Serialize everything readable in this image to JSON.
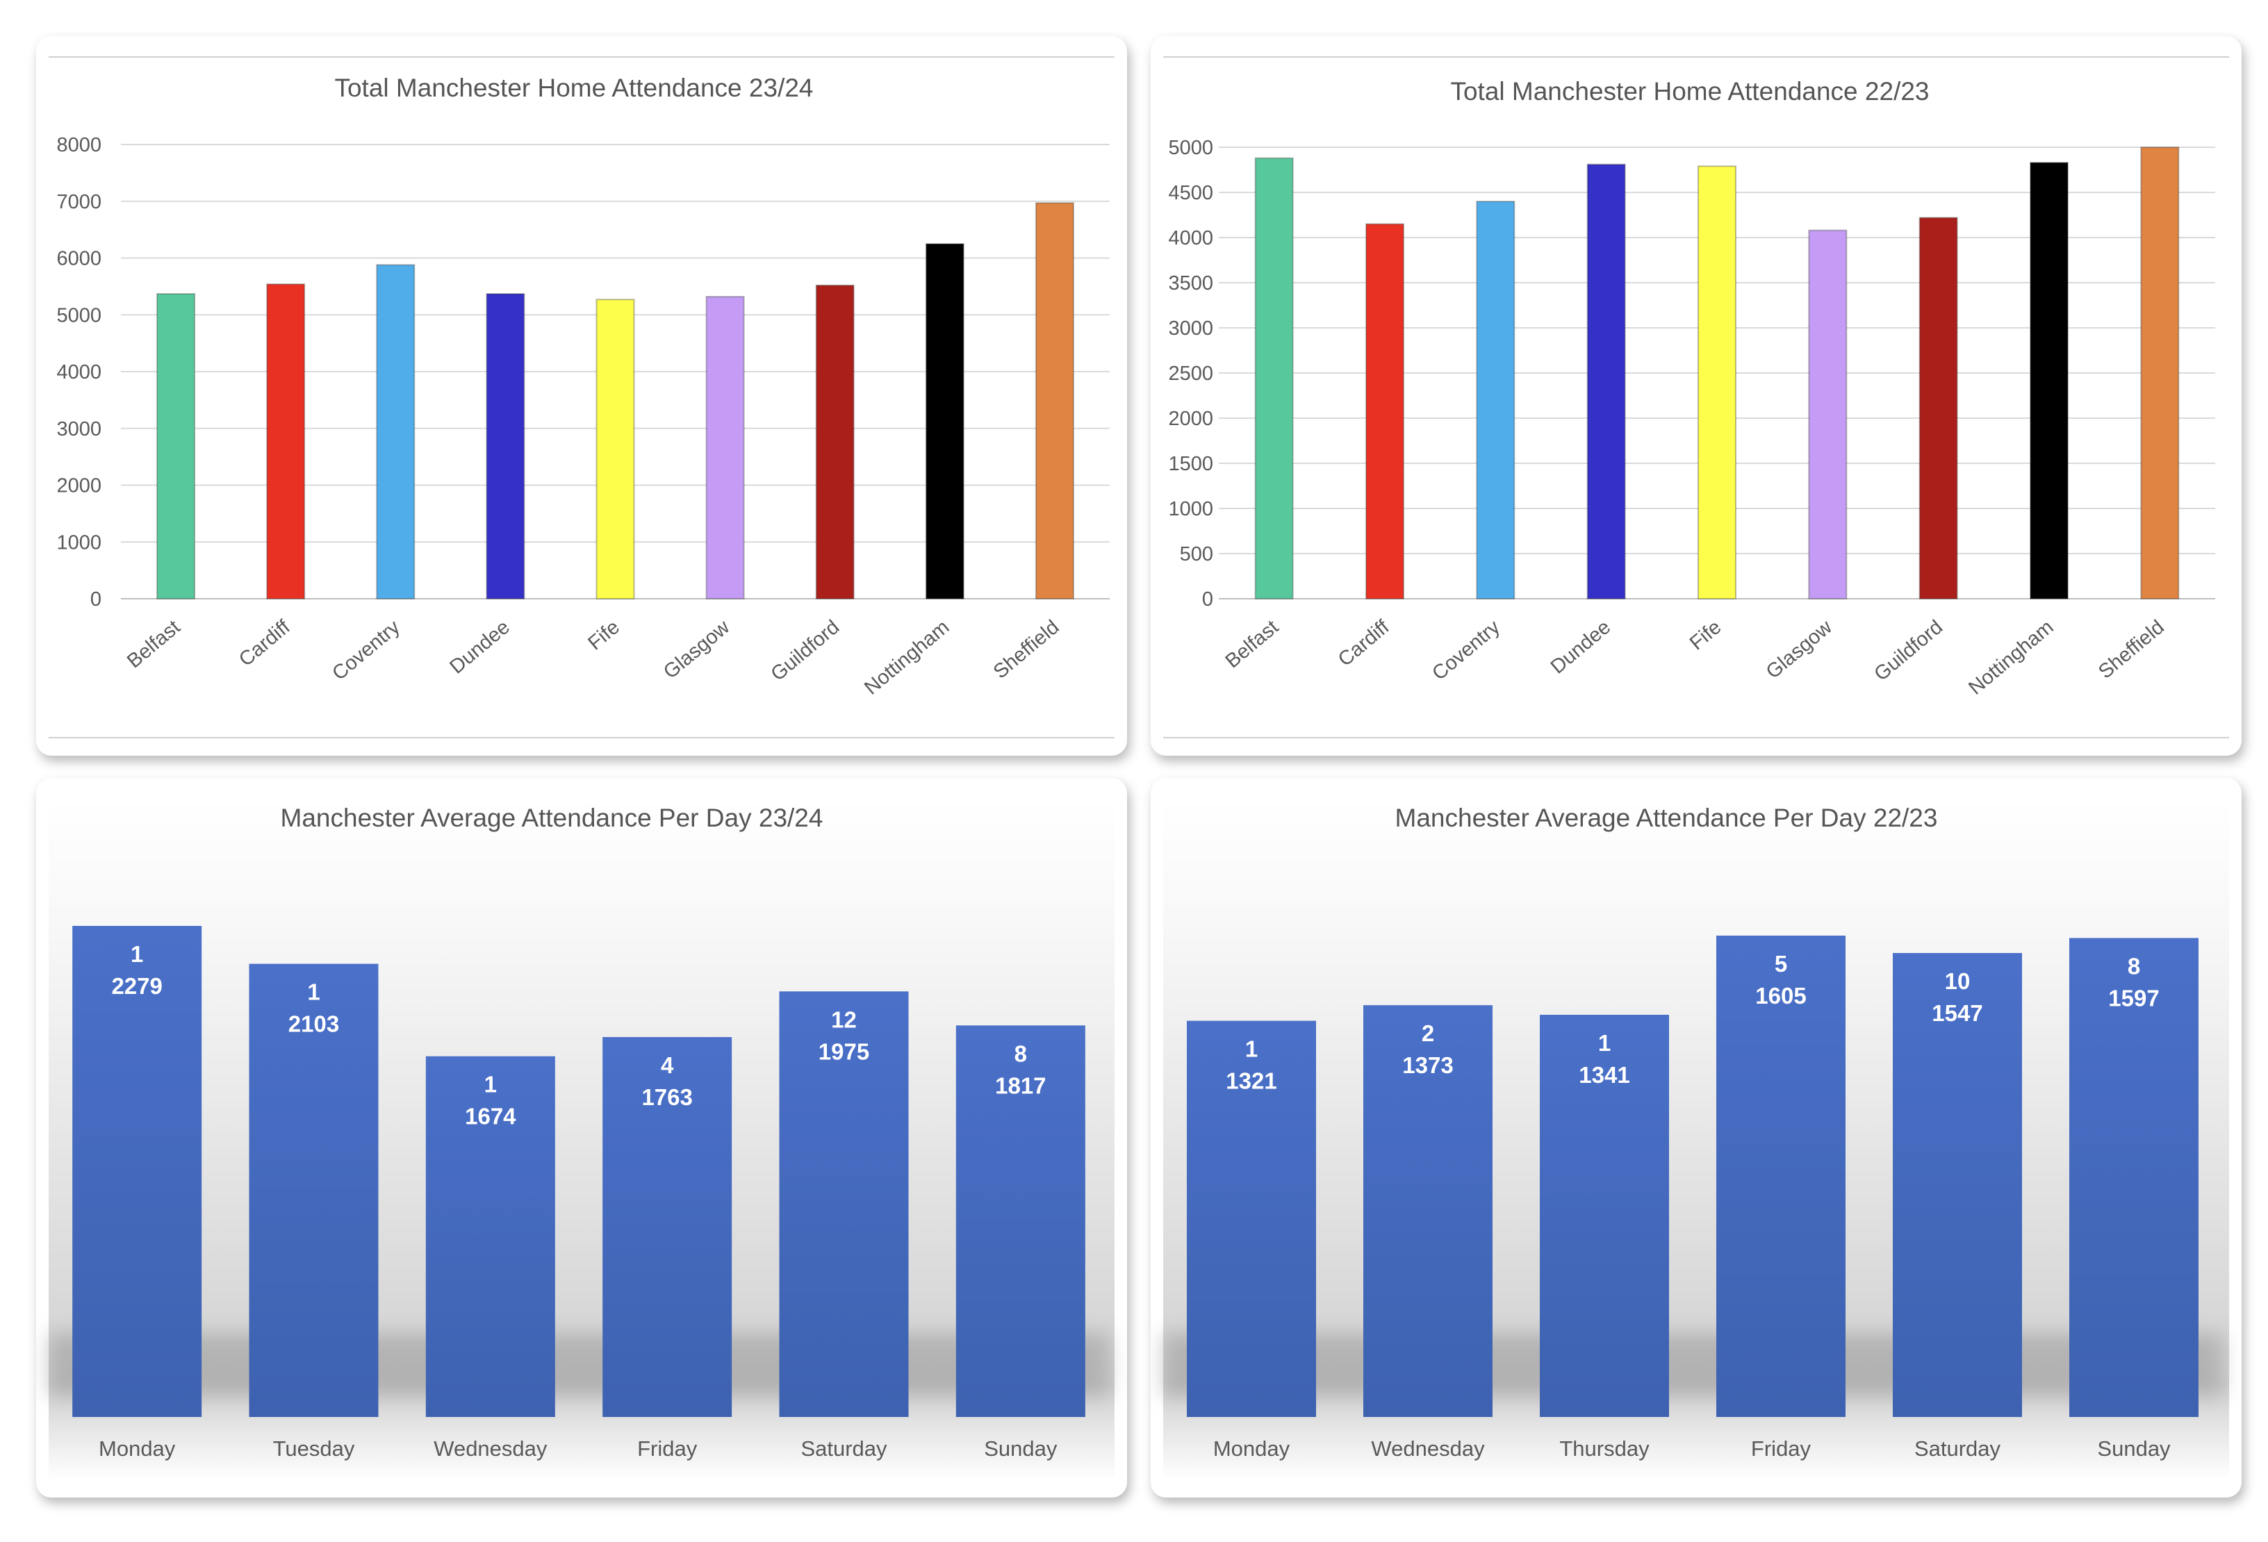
{
  "chart_data": [
    {
      "type": "bar",
      "title": "Total Manchester Home Attendance 23/24",
      "categories": [
        "Belfast",
        "Cardiff",
        "Coventry",
        "Dundee",
        "Fife",
        "Glasgow",
        "Guildford",
        "Nottingham",
        "Sheffield"
      ],
      "values": [
        5370,
        5540,
        5880,
        5370,
        5270,
        5320,
        5520,
        6250,
        6970
      ],
      "colors": [
        "#57c89b",
        "#e93123",
        "#50adea",
        "#3430c8",
        "#fdfd4b",
        "#c49bf5",
        "#ab1f1a",
        "#000000",
        "#df8442"
      ],
      "ylim": [
        0,
        8000
      ],
      "yticks": [
        0,
        1000,
        2000,
        3000,
        4000,
        5000,
        6000,
        7000,
        8000
      ],
      "grid": true,
      "legend": "none"
    },
    {
      "type": "bar",
      "title": "Total Manchester Home Attendance 22/23",
      "categories": [
        "Belfast",
        "Cardiff",
        "Coventry",
        "Dundee",
        "Fife",
        "Glasgow",
        "Guildford",
        "Nottingham",
        "Sheffield"
      ],
      "values": [
        4880,
        4150,
        4400,
        4810,
        4790,
        4080,
        4220,
        4830,
        5000
      ],
      "colors": [
        "#57c89b",
        "#e93123",
        "#50adea",
        "#3430c8",
        "#fdfd4b",
        "#c49bf5",
        "#ab1f1a",
        "#000000",
        "#df8442"
      ],
      "ylim": [
        0,
        5000
      ],
      "yticks": [
        0,
        500,
        1000,
        1500,
        2000,
        2500,
        3000,
        3500,
        4000,
        4500,
        5000
      ],
      "grid": true,
      "legend": "none"
    },
    {
      "type": "bar",
      "title": "Manchester Average Attendance Per Day 23/24",
      "categories": [
        "Monday",
        "Tuesday",
        "Wednesday",
        "Friday",
        "Saturday",
        "Sunday"
      ],
      "series": [
        {
          "values": [
            2279,
            2103,
            1674,
            1763,
            1975,
            1817
          ]
        },
        {
          "values": [
            1,
            1,
            1,
            4,
            12,
            8
          ]
        }
      ],
      "data_labels": [
        "2279",
        "2103",
        "1674",
        "1763",
        "1975",
        "1817"
      ],
      "count_labels": [
        "1",
        "1",
        "1",
        "4",
        "12",
        "8"
      ],
      "bar_color": "#4468c0",
      "grid": false,
      "legend": "none"
    },
    {
      "type": "bar",
      "title": "Manchester Average Attendance Per Day 22/23",
      "categories": [
        "Monday",
        "Wednesday",
        "Thursday",
        "Friday",
        "Saturday",
        "Sunday"
      ],
      "series": [
        {
          "values": [
            1321,
            1373,
            1341,
            1605,
            1547,
            1597
          ]
        },
        {
          "values": [
            1,
            2,
            1,
            5,
            10,
            8
          ]
        }
      ],
      "data_labels": [
        "1321",
        "1373",
        "1341",
        "1605",
        "1547",
        "1597"
      ],
      "count_labels": [
        "1",
        "2",
        "1",
        "5",
        "10",
        "8"
      ],
      "bar_color": "#4468c0",
      "grid": false,
      "legend": "none"
    }
  ]
}
